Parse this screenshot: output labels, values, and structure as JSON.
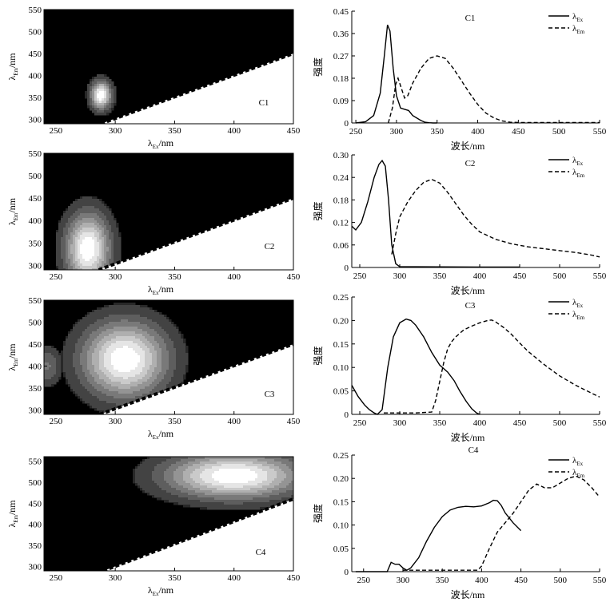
{
  "figure_title": "",
  "chart_data": [
    {
      "type": "heatmap",
      "label": "C1",
      "x_axis": {
        "symbol": "λ",
        "sub": "Ex",
        "unit": "/nm",
        "ticks": [
          250,
          300,
          350,
          400,
          450
        ],
        "range": [
          240,
          450
        ]
      },
      "y_axis": {
        "symbol": "λ",
        "sub": "Em",
        "unit": "/nm",
        "ticks": [
          300,
          350,
          400,
          450,
          500,
          550
        ],
        "range": [
          290,
          550
        ]
      },
      "peaks": [
        {
          "ex": 288,
          "em": 355,
          "sx": 6,
          "sy": 22,
          "amp": 1.0
        }
      ],
      "cutoff_line": {
        "from_ex": 288,
        "em_at_450": 450
      }
    },
    {
      "type": "line",
      "label": "C1",
      "ylabel": "强度",
      "xlabel": "波长/nm",
      "xlim": [
        245,
        550
      ],
      "ylim": [
        0,
        0.45
      ],
      "xticks": [
        250,
        300,
        350,
        400,
        450,
        500,
        550
      ],
      "yticks": [
        "0",
        "0.09",
        "0.18",
        "0.27",
        "0.36",
        "0.45"
      ],
      "legend": [
        {
          "symbol": "λ",
          "sub": "Ex",
          "style": "solid"
        },
        {
          "symbol": "λ",
          "sub": "Em",
          "style": "dashed"
        }
      ],
      "series": [
        {
          "style": "solid",
          "x": [
            250,
            262,
            272,
            280,
            285,
            289,
            292,
            296,
            300,
            305,
            310,
            315,
            320,
            330,
            335,
            340,
            345,
            350
          ],
          "y": [
            0,
            0.005,
            0.03,
            0.12,
            0.27,
            0.395,
            0.37,
            0.22,
            0.11,
            0.06,
            0.055,
            0.05,
            0.03,
            0.01,
            0.003,
            0.001,
            0,
            0
          ]
        },
        {
          "style": "dashed",
          "x": [
            290,
            295,
            299,
            302,
            306,
            310,
            314,
            320,
            330,
            340,
            350,
            360,
            370,
            380,
            390,
            400,
            410,
            420,
            430,
            440,
            450,
            500,
            550
          ],
          "y": [
            0,
            0.06,
            0.155,
            0.18,
            0.14,
            0.1,
            0.11,
            0.16,
            0.22,
            0.26,
            0.27,
            0.26,
            0.22,
            0.17,
            0.12,
            0.075,
            0.04,
            0.02,
            0.008,
            0.003,
            0.002,
            0.002,
            0.002
          ]
        }
      ]
    },
    {
      "type": "heatmap",
      "label": "C2",
      "x_axis": {
        "symbol": "λ",
        "sub": "Ex",
        "unit": "/nm",
        "ticks": [
          250,
          300,
          350,
          400,
          450
        ],
        "range": [
          240,
          450
        ]
      },
      "y_axis": {
        "symbol": "λ",
        "sub": "Em",
        "unit": "/nm",
        "ticks": [
          300,
          350,
          400,
          450,
          500,
          550
        ],
        "range": [
          290,
          550
        ]
      },
      "peaks": [
        {
          "ex": 277,
          "em": 337,
          "sx": 13,
          "sy": 55,
          "amp": 1.0
        }
      ],
      "cutoff_line": {
        "from_ex": 286,
        "em_at_450": 450
      }
    },
    {
      "type": "line",
      "label": "C2",
      "ylabel": "强度",
      "xlabel": "波长/nm",
      "xlim": [
        240,
        550
      ],
      "ylim": [
        0,
        0.3
      ],
      "xticks": [
        250,
        300,
        350,
        400,
        450,
        500,
        550
      ],
      "yticks": [
        "0",
        "0.06",
        "0.12",
        "0.18",
        "0.24",
        "0.30"
      ],
      "legend": [
        {
          "symbol": "λ",
          "sub": "Ex",
          "style": "solid"
        },
        {
          "symbol": "λ",
          "sub": "Em",
          "style": "dashed"
        }
      ],
      "series": [
        {
          "style": "solid",
          "x": [
            240,
            245,
            252,
            260,
            268,
            274,
            278,
            282,
            286,
            290,
            295,
            300,
            320,
            400,
            450
          ],
          "y": [
            0.11,
            0.1,
            0.12,
            0.175,
            0.24,
            0.275,
            0.285,
            0.27,
            0.18,
            0.06,
            0.01,
            0.002,
            0.002,
            0.001,
            0.001
          ]
        },
        {
          "style": "dashed",
          "x": [
            290,
            295,
            300,
            310,
            320,
            330,
            340,
            350,
            360,
            370,
            380,
            390,
            400,
            420,
            440,
            460,
            480,
            500,
            520,
            540,
            550
          ],
          "y": [
            0.035,
            0.09,
            0.135,
            0.175,
            0.205,
            0.227,
            0.235,
            0.225,
            0.2,
            0.17,
            0.14,
            0.115,
            0.095,
            0.075,
            0.063,
            0.055,
            0.05,
            0.045,
            0.04,
            0.033,
            0.028
          ]
        }
      ]
    },
    {
      "type": "heatmap",
      "label": "C3",
      "x_axis": {
        "symbol": "λ",
        "sub": "Ex",
        "unit": "/nm",
        "ticks": [
          250,
          300,
          350,
          400,
          450
        ],
        "range": [
          240,
          450
        ]
      },
      "y_axis": {
        "symbol": "λ",
        "sub": "Em",
        "unit": "/nm",
        "ticks": [
          300,
          350,
          400,
          450,
          500,
          550
        ],
        "range": [
          290,
          550
        ]
      },
      "peaks": [
        {
          "ex": 308,
          "em": 415,
          "sx": 25,
          "sy": 60,
          "amp": 1.0
        },
        {
          "ex": 243,
          "em": 400,
          "sx": 8,
          "sy": 30,
          "amp": 0.35
        }
      ],
      "cutoff_line": {
        "from_ex": 287,
        "em_at_450": 450
      }
    },
    {
      "type": "line",
      "label": "C3",
      "ylabel": "强度",
      "xlabel": "波长/nm",
      "xlim": [
        240,
        550
      ],
      "ylim": [
        0,
        0.25
      ],
      "xticks": [
        250,
        300,
        350,
        400,
        450,
        500,
        550
      ],
      "yticks": [
        "0",
        "0.05",
        "0.10",
        "0.15",
        "0.20",
        "0.25"
      ],
      "legend": [
        {
          "symbol": "λ",
          "sub": "Ex",
          "style": "solid"
        },
        {
          "symbol": "λ",
          "sub": "Em",
          "style": "dashed"
        }
      ],
      "series": [
        {
          "style": "solid",
          "x": [
            240,
            248,
            256,
            262,
            268,
            272,
            278,
            285,
            292,
            300,
            308,
            314,
            320,
            330,
            340,
            350,
            360,
            368,
            375,
            383,
            390,
            396,
            400
          ],
          "y": [
            0.062,
            0.038,
            0.02,
            0.01,
            0.003,
            0.0,
            0.01,
            0.1,
            0.165,
            0.195,
            0.203,
            0.2,
            0.19,
            0.165,
            0.132,
            0.105,
            0.09,
            0.072,
            0.05,
            0.028,
            0.012,
            0.003,
            0
          ]
        },
        {
          "style": "dashed",
          "x": [
            280,
            320,
            340,
            345,
            350,
            355,
            360,
            365,
            370,
            380,
            390,
            400,
            410,
            415,
            420,
            430,
            440,
            450,
            460,
            480,
            500,
            520,
            540,
            550
          ],
          "y": [
            0.003,
            0.003,
            0.005,
            0.03,
            0.07,
            0.11,
            0.14,
            0.155,
            0.165,
            0.18,
            0.188,
            0.195,
            0.2,
            0.201,
            0.197,
            0.185,
            0.17,
            0.152,
            0.135,
            0.107,
            0.082,
            0.062,
            0.045,
            0.037
          ]
        }
      ]
    },
    {
      "type": "heatmap",
      "label": "C4",
      "x_axis": {
        "symbol": "λ",
        "sub": "Ex",
        "unit": "/nm",
        "ticks": [
          250,
          300,
          350,
          400,
          450
        ],
        "range": [
          240,
          450
        ]
      },
      "y_axis": {
        "symbol": "λ",
        "sub": "Em",
        "unit": "/nm",
        "ticks": [
          300,
          350,
          400,
          450,
          500,
          550
        ],
        "range": [
          290,
          560
        ]
      },
      "peaks": [
        {
          "ex": 400,
          "em": 515,
          "sx": 40,
          "sy": 38,
          "amp": 1.0
        }
      ],
      "cutoff_line": {
        "from_ex": 290,
        "em_at_450": 460
      }
    },
    {
      "type": "line",
      "label": "C4",
      "ylabel": "强度",
      "xlabel": "波长/nm",
      "xlim": [
        235,
        550
      ],
      "ylim": [
        0,
        0.25
      ],
      "xticks": [
        250,
        300,
        350,
        400,
        450,
        500,
        550
      ],
      "yticks": [
        "0",
        "0.05",
        "0.10",
        "0.15",
        "0.20",
        "0.25"
      ],
      "legend": [
        {
          "symbol": "λ",
          "sub": "Ex",
          "style": "solid"
        },
        {
          "symbol": "λ",
          "sub": "Em",
          "style": "dashed"
        }
      ],
      "series": [
        {
          "style": "solid",
          "x": [
            240,
            280,
            285,
            290,
            295,
            300,
            305,
            310,
            320,
            330,
            340,
            350,
            360,
            370,
            380,
            390,
            400,
            410,
            415,
            420,
            425,
            430,
            440,
            450
          ],
          "y": [
            0,
            0,
            0.02,
            0.016,
            0.016,
            0.008,
            0.003,
            0.008,
            0.03,
            0.065,
            0.095,
            0.118,
            0.132,
            0.138,
            0.14,
            0.139,
            0.141,
            0.148,
            0.153,
            0.152,
            0.142,
            0.126,
            0.105,
            0.088
          ]
        },
        {
          "style": "dashed",
          "x": [
            300,
            395,
            400,
            410,
            420,
            430,
            440,
            450,
            460,
            470,
            480,
            490,
            500,
            510,
            520,
            530,
            540,
            550
          ],
          "y": [
            0.003,
            0.003,
            0.012,
            0.05,
            0.085,
            0.105,
            0.125,
            0.15,
            0.175,
            0.188,
            0.18,
            0.18,
            0.19,
            0.2,
            0.205,
            0.197,
            0.18,
            0.16
          ]
        }
      ]
    }
  ]
}
